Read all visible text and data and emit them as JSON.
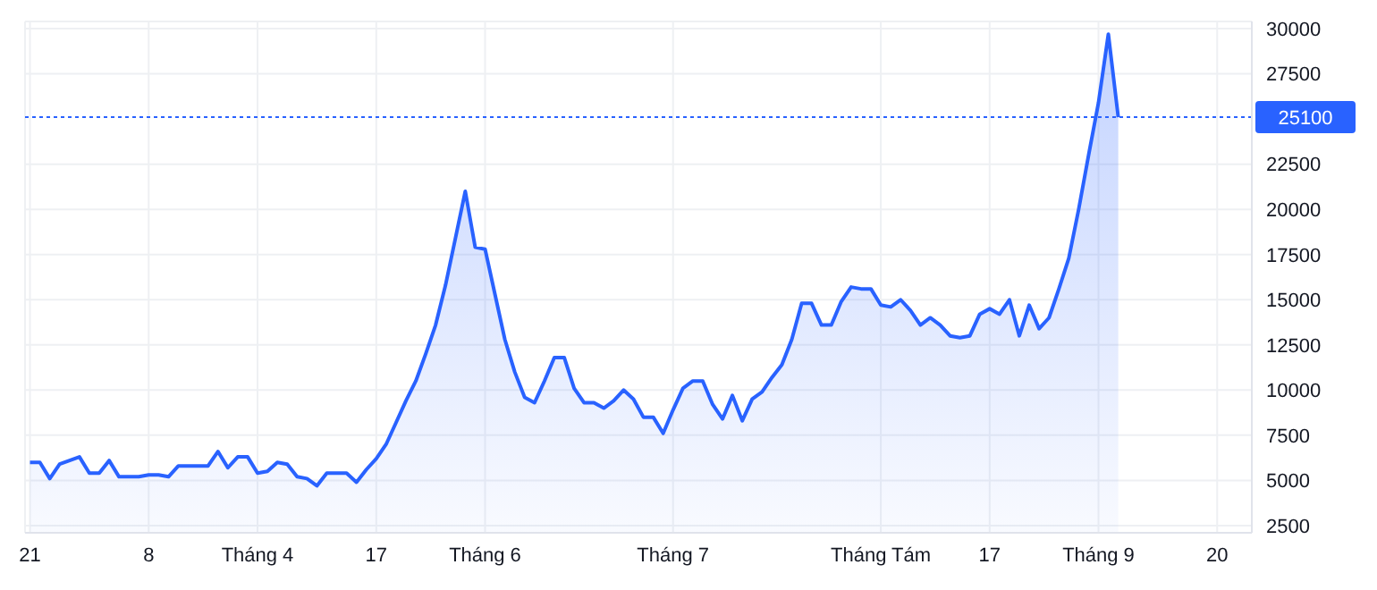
{
  "chart_data": {
    "type": "area",
    "categories": [
      "21",
      null,
      null,
      null,
      null,
      null,
      null,
      null,
      null,
      null,
      null,
      null,
      "8",
      null,
      null,
      null,
      null,
      null,
      null,
      null,
      null,
      null,
      null,
      "Tháng 4",
      null,
      null,
      null,
      null,
      null,
      null,
      null,
      null,
      null,
      null,
      null,
      "17",
      null,
      null,
      null,
      null,
      null,
      null,
      null,
      null,
      null,
      null,
      "Tháng 6",
      null,
      null,
      null,
      null,
      null,
      null,
      null,
      null,
      null,
      null,
      null,
      null,
      null,
      null,
      null,
      null,
      null,
      null,
      "Tháng 7",
      null,
      null,
      null,
      null,
      null,
      null,
      null,
      null,
      null,
      null,
      null,
      null,
      null,
      null,
      null,
      null,
      null,
      null,
      null,
      null,
      "Tháng Tám",
      null,
      null,
      null,
      null,
      null,
      null,
      null,
      null,
      null,
      null,
      "17",
      null,
      null,
      null,
      null,
      null,
      null,
      null,
      null,
      null,
      null,
      "Tháng 9",
      null,
      null,
      null,
      null,
      null,
      null,
      null,
      null,
      null,
      null,
      null,
      "20",
      null,
      null,
      null
    ],
    "series": [
      {
        "color": "#2962ff",
        "values": [
          6000,
          6000,
          5100,
          5900,
          6100,
          6300,
          5400,
          5400,
          6100,
          5200,
          5200,
          5200,
          5300,
          5300,
          5200,
          5800,
          5800,
          5800,
          5800,
          6600,
          5700,
          6300,
          6300,
          5400,
          5500,
          6000,
          5900,
          5200,
          5100,
          4700,
          5400,
          5400,
          5400,
          4900,
          5600,
          6200,
          7000,
          8200,
          9400,
          10500,
          12000,
          13600,
          15800,
          18400,
          21000,
          17900,
          17800,
          15300,
          12800,
          11000,
          9600,
          9300,
          10500,
          11800,
          11800,
          10100,
          9300,
          9300,
          9000,
          9400,
          10000,
          9500,
          8500,
          8500,
          7600,
          8900,
          10100,
          10500,
          10500,
          9200,
          8400,
          9700,
          8300,
          9500,
          9900,
          10700,
          11400,
          12800,
          14800,
          14800,
          13600,
          13600,
          14900,
          15700,
          15600,
          15600,
          14700,
          14600,
          15000,
          14400,
          13600,
          14000,
          13600,
          13000,
          12900,
          13000,
          14200,
          14500,
          14200,
          15000,
          13000,
          14700,
          13400,
          14000,
          15600,
          17300,
          20000,
          23000,
          25900,
          29700,
          25100,
          null,
          null,
          null,
          null,
          null,
          null,
          null,
          null,
          null,
          null,
          null,
          null,
          null
        ]
      }
    ],
    "ylim": [
      2100,
      30400
    ],
    "yticks": [
      2500,
      5000,
      7500,
      10000,
      12500,
      15000,
      17500,
      20000,
      22500,
      27500,
      30000
    ],
    "grid": true,
    "ref_lines": [
      {
        "axis": "y",
        "value": 25100,
        "label": "25100",
        "color": "#2962ff",
        "line_style": "dotted"
      }
    ]
  }
}
